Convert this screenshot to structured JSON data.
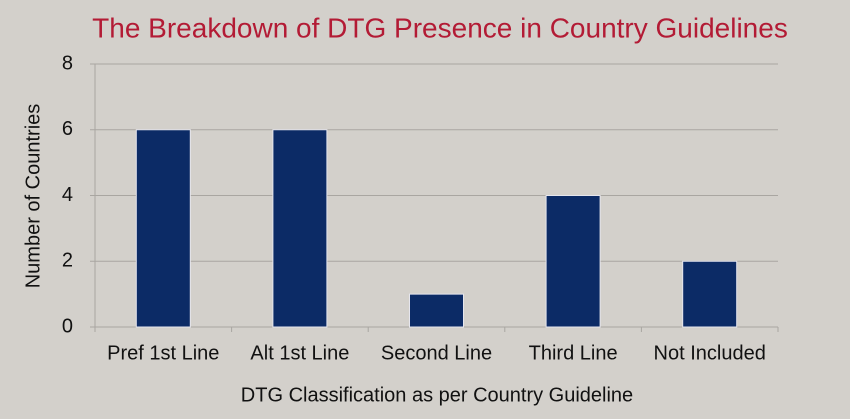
{
  "chart_data": {
    "type": "bar",
    "title": "The Breakdown of DTG Presence in Country Guidelines",
    "categories": [
      "Pref 1st Line",
      "Alt 1st Line",
      "Second Line",
      "Third Line",
      "Not Included"
    ],
    "values": [
      6,
      6,
      1,
      4,
      2
    ],
    "color": "#0c2b66",
    "ylim": [
      0,
      8
    ],
    "yticks": [
      0,
      2,
      4,
      6,
      8
    ],
    "grid": true,
    "xlabel": "DTG Classification as per Country Guideline",
    "ylabel": "Number of Countries"
  }
}
